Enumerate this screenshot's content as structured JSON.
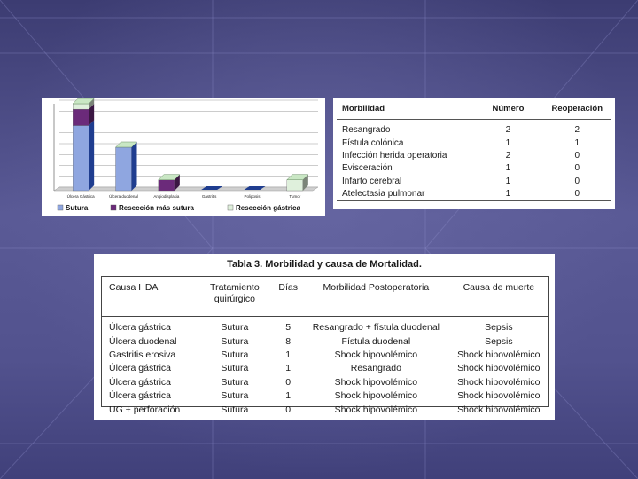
{
  "slide": {
    "background_color": "#4a4a82"
  },
  "chart_data": {
    "type": "bar",
    "categories": [
      "Úlcera Gástrica",
      "Úlcera duodenal",
      "Angiodisplasia",
      "Gastritis",
      "Poliposis",
      "Tumor"
    ],
    "series": [
      {
        "name": "Sutura",
        "values": [
          6,
          4,
          0,
          0,
          0,
          0
        ],
        "color": "#8fa6e0"
      },
      {
        "name": "Resección más sutura",
        "values": [
          1.5,
          0,
          1,
          0,
          0,
          0
        ],
        "color": "#6b2a7a"
      },
      {
        "name": "Resección gástrica",
        "values": [
          0.5,
          0,
          0,
          0,
          0,
          1
        ],
        "color": "#dff0dc"
      }
    ],
    "stacked": true,
    "ylim": [
      0,
      8
    ],
    "grid": true,
    "legend_position": "bottom"
  },
  "morbilidad_table": {
    "headers": [
      "Morbilidad",
      "Número",
      "Reoperación"
    ],
    "rows": [
      [
        "Resangrado",
        "2",
        "2"
      ],
      [
        "Fístula colónica",
        "1",
        "1"
      ],
      [
        "Infección herida operatoria",
        "2",
        "0"
      ],
      [
        "Evisceración",
        "1",
        "0"
      ],
      [
        "Infarto cerebral",
        "1",
        "0"
      ],
      [
        "Atelectasia pulmonar",
        "1",
        "0"
      ]
    ]
  },
  "tabla3": {
    "title": "Tabla 3. Morbilidad y causa de Mortalidad.",
    "headers": [
      "Causa HDA",
      "Tratamiento quirúrgico",
      "Días",
      "Morbilidad Postoperatoria",
      "Causa de muerte"
    ],
    "rows": [
      [
        "Úlcera gástrica",
        "Sutura",
        "5",
        "Resangrado + fístula duodenal",
        "Sepsis"
      ],
      [
        "Úlcera duodenal",
        "Sutura",
        "8",
        "Fístula duodenal",
        "Sepsis"
      ],
      [
        "Gastritis erosiva",
        "Sutura",
        "1",
        "Shock hipovolémico",
        "Shock hipovolémico"
      ],
      [
        "Úlcera gástrica",
        "Sutura",
        "1",
        "Resangrado",
        "Shock hipovolémico"
      ],
      [
        "Úlcera gástrica",
        "Sutura",
        "0",
        "Shock hipovolémico",
        "Shock hipovolémico"
      ],
      [
        "Úlcera gástrica",
        "Sutura",
        "1",
        "Shock hipovolémico",
        "Shock hipovolémico"
      ],
      [
        "UG + perforación",
        "Sutura",
        "0",
        "Shock hipovolémico",
        "Shock hipovolémico"
      ]
    ]
  }
}
